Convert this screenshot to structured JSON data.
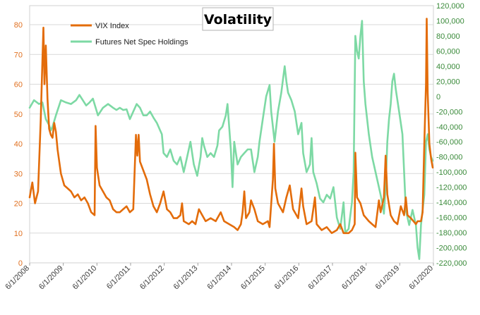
{
  "chart_data": {
    "type": "line",
    "title": "Volatility",
    "x_tick_labels": [
      "6/1/2008",
      "6/1/2009",
      "6/1/2010",
      "6/1/2011",
      "6/1/2012",
      "6/1/2013",
      "6/1/2014",
      "6/1/2015",
      "6/1/2016",
      "6/1/2017",
      "6/1/2018",
      "6/1/2019",
      "6/1/2020"
    ],
    "x_range": [
      2008.42,
      2020.42
    ],
    "y_left": {
      "ticks": [
        "0",
        "10",
        "20",
        "30",
        "40",
        "50",
        "60",
        "70",
        "80"
      ],
      "range": [
        0,
        80
      ]
    },
    "y_right": {
      "ticks": [
        "-220,000",
        "-200,000",
        "-180,000",
        "-160,000",
        "-140,000",
        "-120,000",
        "-100,000",
        "-80,000",
        "-60,000",
        "-40,000",
        "-20,000",
        "0",
        "20,000",
        "40,000",
        "60,000",
        "80,000",
        "100,000",
        "120,000"
      ],
      "range": [
        -220000,
        120000
      ]
    },
    "grid": "horizontal",
    "legend_position": "top-left",
    "series": [
      {
        "name": "VIX Index",
        "axis": "left",
        "color": "#E36C0A",
        "points": [
          [
            2008.42,
            22
          ],
          [
            2008.5,
            27
          ],
          [
            2008.58,
            20
          ],
          [
            2008.67,
            24
          ],
          [
            2008.75,
            48
          ],
          [
            2008.8,
            68
          ],
          [
            2008.83,
            79
          ],
          [
            2008.86,
            60
          ],
          [
            2008.9,
            73
          ],
          [
            2008.95,
            55
          ],
          [
            2009.0,
            45
          ],
          [
            2009.05,
            43
          ],
          [
            2009.1,
            42
          ],
          [
            2009.15,
            47
          ],
          [
            2009.2,
            44
          ],
          [
            2009.25,
            38
          ],
          [
            2009.35,
            30
          ],
          [
            2009.45,
            26
          ],
          [
            2009.55,
            25
          ],
          [
            2009.65,
            24
          ],
          [
            2009.75,
            22
          ],
          [
            2009.85,
            23
          ],
          [
            2009.95,
            21
          ],
          [
            2010.05,
            22
          ],
          [
            2010.15,
            20
          ],
          [
            2010.25,
            17
          ],
          [
            2010.35,
            16
          ],
          [
            2010.38,
            46
          ],
          [
            2010.42,
            32
          ],
          [
            2010.5,
            26
          ],
          [
            2010.6,
            24
          ],
          [
            2010.7,
            22
          ],
          [
            2010.8,
            21
          ],
          [
            2010.9,
            18
          ],
          [
            2011.0,
            17
          ],
          [
            2011.1,
            17
          ],
          [
            2011.2,
            18
          ],
          [
            2011.3,
            19
          ],
          [
            2011.4,
            17
          ],
          [
            2011.5,
            18
          ],
          [
            2011.58,
            43
          ],
          [
            2011.62,
            36
          ],
          [
            2011.66,
            43
          ],
          [
            2011.7,
            34
          ],
          [
            2011.8,
            31
          ],
          [
            2011.9,
            28
          ],
          [
            2012.0,
            23
          ],
          [
            2012.1,
            19
          ],
          [
            2012.2,
            17
          ],
          [
            2012.3,
            20
          ],
          [
            2012.4,
            24
          ],
          [
            2012.5,
            18
          ],
          [
            2012.6,
            17
          ],
          [
            2012.7,
            15
          ],
          [
            2012.8,
            15
          ],
          [
            2012.9,
            16
          ],
          [
            2012.95,
            20
          ],
          [
            2013.0,
            14
          ],
          [
            2013.15,
            13
          ],
          [
            2013.25,
            14
          ],
          [
            2013.35,
            13
          ],
          [
            2013.45,
            18
          ],
          [
            2013.55,
            16
          ],
          [
            2013.65,
            14
          ],
          [
            2013.8,
            15
          ],
          [
            2013.95,
            14
          ],
          [
            2014.1,
            17
          ],
          [
            2014.2,
            14
          ],
          [
            2014.35,
            13
          ],
          [
            2014.5,
            12
          ],
          [
            2014.6,
            11
          ],
          [
            2014.7,
            13
          ],
          [
            2014.75,
            17
          ],
          [
            2014.8,
            24
          ],
          [
            2014.85,
            15
          ],
          [
            2014.95,
            17
          ],
          [
            2015.0,
            21
          ],
          [
            2015.1,
            18
          ],
          [
            2015.2,
            14
          ],
          [
            2015.35,
            13
          ],
          [
            2015.5,
            14
          ],
          [
            2015.55,
            12
          ],
          [
            2015.65,
            28
          ],
          [
            2015.68,
            40
          ],
          [
            2015.72,
            25
          ],
          [
            2015.8,
            20
          ],
          [
            2015.95,
            17
          ],
          [
            2016.05,
            22
          ],
          [
            2016.15,
            26
          ],
          [
            2016.25,
            18
          ],
          [
            2016.4,
            15
          ],
          [
            2016.5,
            25
          ],
          [
            2016.55,
            19
          ],
          [
            2016.65,
            13
          ],
          [
            2016.8,
            14
          ],
          [
            2016.9,
            22
          ],
          [
            2016.95,
            13
          ],
          [
            2017.1,
            11
          ],
          [
            2017.25,
            12
          ],
          [
            2017.4,
            10
          ],
          [
            2017.55,
            11
          ],
          [
            2017.65,
            13
          ],
          [
            2017.75,
            10
          ],
          [
            2017.9,
            10
          ],
          [
            2018.0,
            11
          ],
          [
            2018.08,
            13
          ],
          [
            2018.1,
            37
          ],
          [
            2018.15,
            22
          ],
          [
            2018.25,
            20
          ],
          [
            2018.35,
            16
          ],
          [
            2018.5,
            14
          ],
          [
            2018.6,
            13
          ],
          [
            2018.7,
            12
          ],
          [
            2018.8,
            21
          ],
          [
            2018.85,
            17
          ],
          [
            2018.95,
            22
          ],
          [
            2019.0,
            36
          ],
          [
            2019.05,
            23
          ],
          [
            2019.15,
            16
          ],
          [
            2019.25,
            14
          ],
          [
            2019.35,
            13
          ],
          [
            2019.45,
            19
          ],
          [
            2019.55,
            16
          ],
          [
            2019.6,
            22
          ],
          [
            2019.65,
            16
          ],
          [
            2019.75,
            15
          ],
          [
            2019.9,
            13
          ],
          [
            2019.95,
            14
          ],
          [
            2020.05,
            14
          ],
          [
            2020.1,
            17
          ],
          [
            2020.15,
            40
          ],
          [
            2020.2,
            60
          ],
          [
            2020.22,
            82
          ],
          [
            2020.25,
            57
          ],
          [
            2020.3,
            40
          ],
          [
            2020.35,
            35
          ],
          [
            2020.4,
            32
          ]
        ]
      },
      {
        "name": "Futures Net Spec Holdings",
        "axis": "right",
        "color": "#7DD9A4",
        "points": [
          [
            2008.42,
            -15000
          ],
          [
            2008.55,
            -5000
          ],
          [
            2008.7,
            -10000
          ],
          [
            2008.8,
            -8000
          ],
          [
            2008.9,
            -30000
          ],
          [
            2009.0,
            -38000
          ],
          [
            2009.05,
            -45000
          ],
          [
            2009.1,
            -40000
          ],
          [
            2009.2,
            -25000
          ],
          [
            2009.35,
            -5000
          ],
          [
            2009.5,
            -8000
          ],
          [
            2009.65,
            -10000
          ],
          [
            2009.8,
            -5000
          ],
          [
            2009.9,
            2000
          ],
          [
            2010.0,
            -5000
          ],
          [
            2010.1,
            -12000
          ],
          [
            2010.2,
            -8000
          ],
          [
            2010.3,
            -3000
          ],
          [
            2010.45,
            -25000
          ],
          [
            2010.6,
            -15000
          ],
          [
            2010.75,
            -10000
          ],
          [
            2010.9,
            -15000
          ],
          [
            2011.0,
            -18000
          ],
          [
            2011.1,
            -15000
          ],
          [
            2011.2,
            -18000
          ],
          [
            2011.3,
            -17000
          ],
          [
            2011.4,
            -30000
          ],
          [
            2011.5,
            -20000
          ],
          [
            2011.6,
            -10000
          ],
          [
            2011.7,
            -15000
          ],
          [
            2011.8,
            -25000
          ],
          [
            2011.9,
            -25000
          ],
          [
            2012.0,
            -20000
          ],
          [
            2012.1,
            -28000
          ],
          [
            2012.2,
            -35000
          ],
          [
            2012.3,
            -45000
          ],
          [
            2012.35,
            -50000
          ],
          [
            2012.4,
            -75000
          ],
          [
            2012.5,
            -80000
          ],
          [
            2012.6,
            -70000
          ],
          [
            2012.7,
            -85000
          ],
          [
            2012.8,
            -90000
          ],
          [
            2012.9,
            -80000
          ],
          [
            2013.0,
            -100000
          ],
          [
            2013.1,
            -80000
          ],
          [
            2013.2,
            -60000
          ],
          [
            2013.3,
            -90000
          ],
          [
            2013.4,
            -105000
          ],
          [
            2013.5,
            -80000
          ],
          [
            2013.55,
            -55000
          ],
          [
            2013.6,
            -65000
          ],
          [
            2013.7,
            -80000
          ],
          [
            2013.8,
            -75000
          ],
          [
            2013.9,
            -80000
          ],
          [
            2014.0,
            -65000
          ],
          [
            2014.05,
            -45000
          ],
          [
            2014.15,
            -40000
          ],
          [
            2014.25,
            -25000
          ],
          [
            2014.3,
            -10000
          ],
          [
            2014.4,
            -70000
          ],
          [
            2014.45,
            -120000
          ],
          [
            2014.5,
            -60000
          ],
          [
            2014.6,
            -90000
          ],
          [
            2014.7,
            -80000
          ],
          [
            2014.8,
            -75000
          ],
          [
            2014.9,
            -70000
          ],
          [
            2015.0,
            -70000
          ],
          [
            2015.1,
            -100000
          ],
          [
            2015.2,
            -80000
          ],
          [
            2015.25,
            -60000
          ],
          [
            2015.35,
            -30000
          ],
          [
            2015.45,
            0
          ],
          [
            2015.55,
            15000
          ],
          [
            2015.6,
            -20000
          ],
          [
            2015.7,
            -60000
          ],
          [
            2015.8,
            -20000
          ],
          [
            2015.9,
            5000
          ],
          [
            2016.0,
            40000
          ],
          [
            2016.05,
            20000
          ],
          [
            2016.1,
            5000
          ],
          [
            2016.2,
            -5000
          ],
          [
            2016.3,
            -20000
          ],
          [
            2016.4,
            -50000
          ],
          [
            2016.5,
            -35000
          ],
          [
            2016.55,
            -75000
          ],
          [
            2016.65,
            -100000
          ],
          [
            2016.75,
            -90000
          ],
          [
            2016.8,
            -55000
          ],
          [
            2016.85,
            -100000
          ],
          [
            2016.95,
            -115000
          ],
          [
            2017.05,
            -135000
          ],
          [
            2017.15,
            -140000
          ],
          [
            2017.25,
            -130000
          ],
          [
            2017.35,
            -135000
          ],
          [
            2017.45,
            -120000
          ],
          [
            2017.55,
            -160000
          ],
          [
            2017.65,
            -175000
          ],
          [
            2017.75,
            -140000
          ],
          [
            2017.8,
            -180000
          ],
          [
            2017.9,
            -175000
          ],
          [
            2018.0,
            -140000
          ],
          [
            2018.05,
            -100000
          ],
          [
            2018.1,
            80000
          ],
          [
            2018.15,
            60000
          ],
          [
            2018.2,
            50000
          ],
          [
            2018.25,
            80000
          ],
          [
            2018.3,
            100000
          ],
          [
            2018.35,
            20000
          ],
          [
            2018.4,
            -10000
          ],
          [
            2018.5,
            -50000
          ],
          [
            2018.6,
            -80000
          ],
          [
            2018.7,
            -100000
          ],
          [
            2018.8,
            -120000
          ],
          [
            2018.9,
            -140000
          ],
          [
            2018.95,
            -155000
          ],
          [
            2019.0,
            -120000
          ],
          [
            2019.05,
            -60000
          ],
          [
            2019.1,
            -30000
          ],
          [
            2019.15,
            -10000
          ],
          [
            2019.2,
            20000
          ],
          [
            2019.25,
            30000
          ],
          [
            2019.3,
            10000
          ],
          [
            2019.4,
            -20000
          ],
          [
            2019.5,
            -50000
          ],
          [
            2019.6,
            -150000
          ],
          [
            2019.7,
            -170000
          ],
          [
            2019.8,
            -150000
          ],
          [
            2019.9,
            -170000
          ],
          [
            2019.95,
            -200000
          ],
          [
            2020.0,
            -215000
          ],
          [
            2020.05,
            -170000
          ],
          [
            2020.1,
            -150000
          ],
          [
            2020.15,
            -130000
          ],
          [
            2020.2,
            -60000
          ],
          [
            2020.25,
            -50000
          ],
          [
            2020.3,
            -70000
          ],
          [
            2020.35,
            -80000
          ],
          [
            2020.4,
            -85000
          ]
        ]
      }
    ]
  }
}
